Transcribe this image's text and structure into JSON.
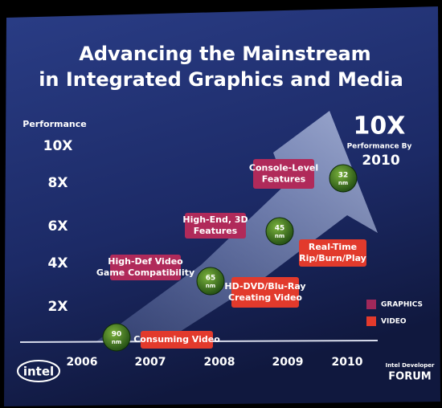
{
  "title": [
    "Advancing the Mainstream",
    "in Integrated Graphics and Media"
  ],
  "y_axis": {
    "label": "Performance",
    "ticks": [
      "10X",
      "8X",
      "6X",
      "4X",
      "2X"
    ]
  },
  "x_axis": {
    "ticks": [
      "2006",
      "2007",
      "2008",
      "2009",
      "2010"
    ]
  },
  "callout": {
    "big": "10X",
    "line1": "Performance By",
    "line2": "2010"
  },
  "graphics_boxes": [
    [
      "High-Def Video",
      "Game Compatibility"
    ],
    [
      "High-End, 3D",
      "Features"
    ],
    [
      "Console-Level",
      "Features"
    ]
  ],
  "video_boxes": [
    [
      "Consuming Video"
    ],
    [
      "HD-DVD/Blu-Ray",
      "Creating Video"
    ],
    [
      "Real-Time",
      "Rip/Burn/Play"
    ]
  ],
  "process_nodes": [
    [
      "90",
      "nm"
    ],
    [
      "65",
      "nm"
    ],
    [
      "45",
      "nm"
    ],
    [
      "32",
      "nm"
    ]
  ],
  "legend": [
    "GRAPHICS",
    "VIDEO"
  ],
  "logos": {
    "intel": "intel",
    "forum_top": "Intel Developer",
    "forum": "FORUM"
  }
}
